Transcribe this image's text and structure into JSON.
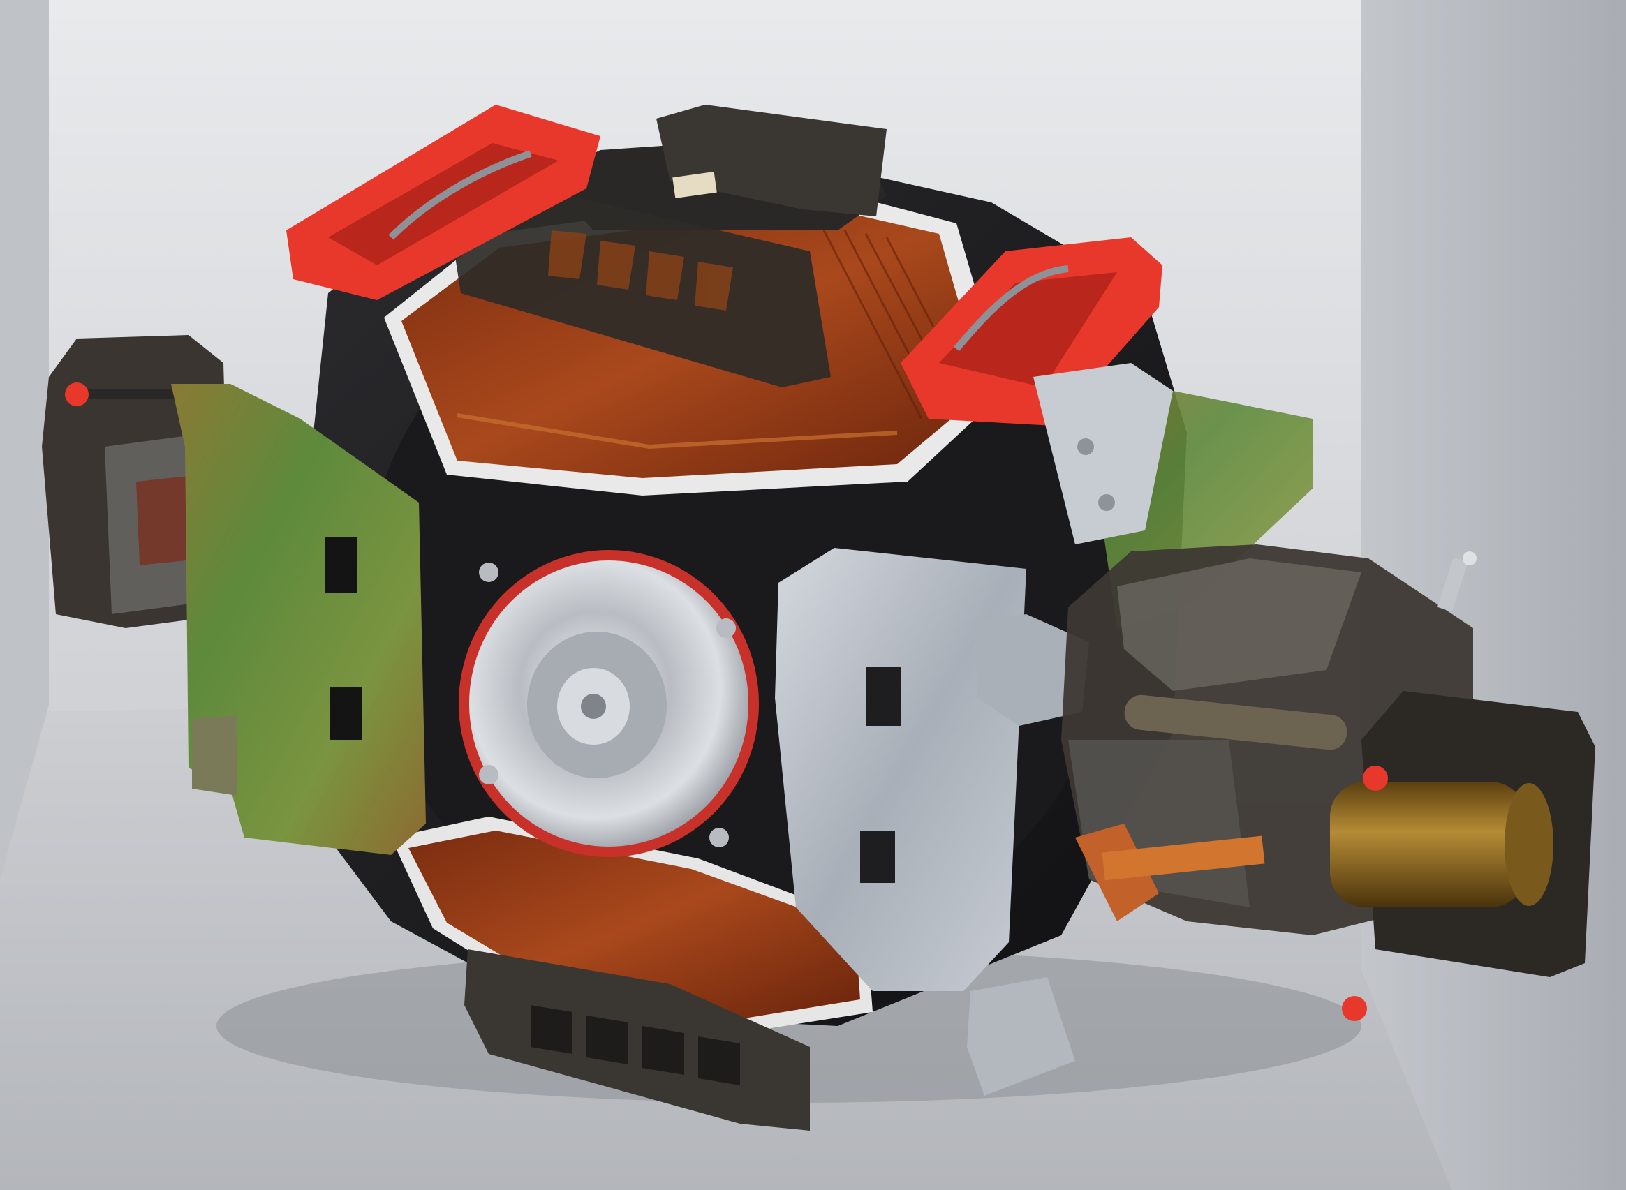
{
  "photo": {
    "subject": "disk-drive-assembly",
    "colors": {
      "wall": "#dfe1e4",
      "wall_right": "#b9bcc1",
      "floor": "#c4c6ca",
      "handle_red": "#e8382c",
      "platter_copper": "#9b3e16",
      "housing_black": "#1c1c1e",
      "bracket_iridescent": "#6e8a3a",
      "bracket_silver": "#b8bec6",
      "smoked_plastic": "#3a3631",
      "spindle_silver": "#d3d6da",
      "gold_rod": "#a07a2a"
    }
  }
}
